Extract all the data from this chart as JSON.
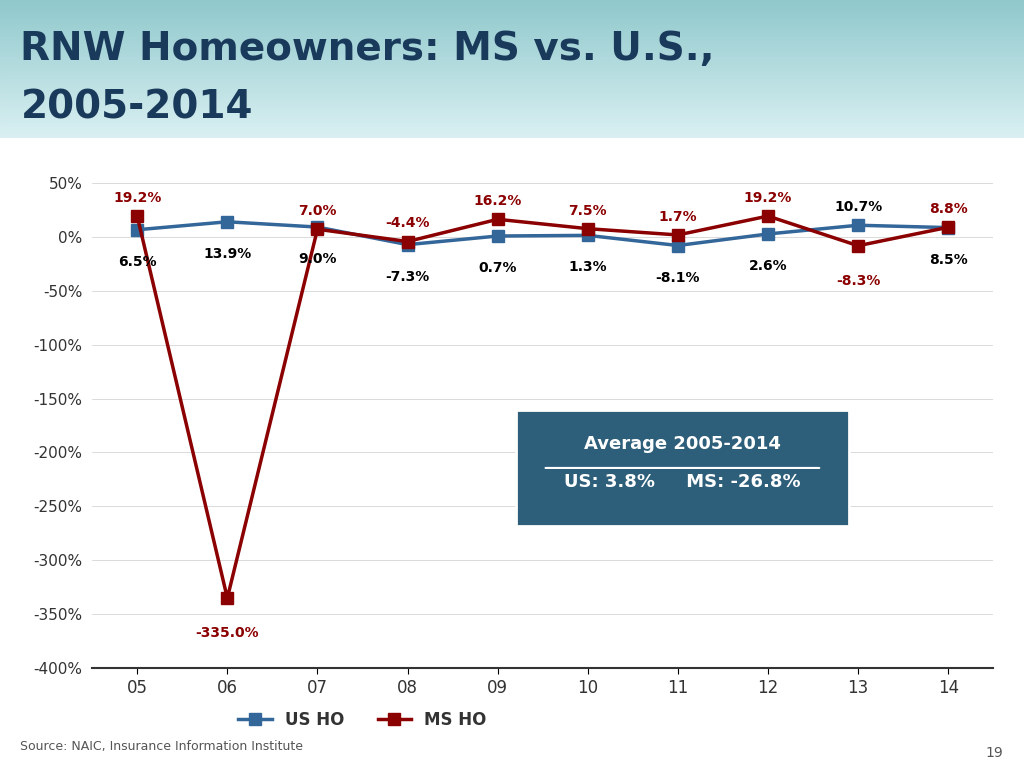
{
  "title_line1": "RNW Homeowners: MS vs. U.S.,",
  "title_line2": "2005-2014",
  "years": [
    5,
    6,
    7,
    8,
    9,
    10,
    11,
    12,
    13,
    14
  ],
  "year_labels": [
    "05",
    "06",
    "07",
    "08",
    "09",
    "10",
    "11",
    "12",
    "13",
    "14"
  ],
  "us_values": [
    6.5,
    13.9,
    9.0,
    -7.3,
    0.7,
    1.3,
    -8.1,
    2.6,
    10.7,
    8.5
  ],
  "ms_values": [
    19.2,
    -335.0,
    7.0,
    -4.4,
    16.2,
    7.5,
    1.7,
    19.2,
    -8.3,
    8.8
  ],
  "us_color": "#336699",
  "ms_color": "#8B0000",
  "us_label": "US HO",
  "ms_label": "MS HO",
  "ylim": [
    -400,
    70
  ],
  "yticks": [
    50,
    0,
    -50,
    -100,
    -150,
    -200,
    -250,
    -300,
    -350,
    -400
  ],
  "ytick_labels": [
    "50%",
    "0%",
    "-50%",
    "-100%",
    "-150%",
    "-200%",
    "-250%",
    "-300%",
    "-350%",
    "-400%"
  ],
  "title_color": "#1a3a5c",
  "source_text": "Source: NAIC, Insurance Information Institute",
  "page_number": "19",
  "avg_box_bg": "#2e5f7a",
  "avg_title": "Average 2005-2014",
  "avg_content": "US: 3.8%     MS: -26.8%"
}
